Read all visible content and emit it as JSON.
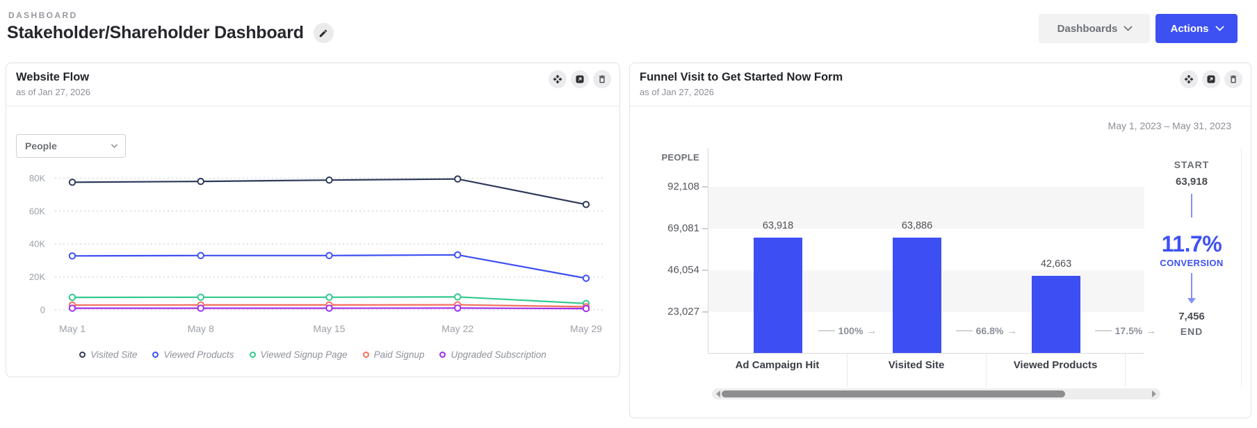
{
  "colors": {
    "accent": "#3d51f2",
    "bar_blue": "#3d4ff2"
  },
  "header": {
    "eyebrow": "DASHBOARD",
    "title": "Stakeholder/Shareholder Dashboard",
    "dashboards_button_label": "Dashboards",
    "actions_button_label": "Actions"
  },
  "website_flow_card": {
    "title": "Website Flow",
    "as_of": "as of Jan 27, 2026",
    "metric_dropdown_value": "People",
    "chart_data": {
      "type": "line",
      "x": [
        "May 1",
        "May 8",
        "May 15",
        "May 22",
        "May 29"
      ],
      "yticks": [
        {
          "label": "0",
          "value": 0
        },
        {
          "label": "20K",
          "value": 20000
        },
        {
          "label": "40K",
          "value": 40000
        },
        {
          "label": "60K",
          "value": 60000
        },
        {
          "label": "80K",
          "value": 80000
        }
      ],
      "ylim": [
        0,
        90000
      ],
      "grid": "dotted-horizontal",
      "legend_position": "bottom",
      "series": [
        {
          "name": "Visited Site",
          "color": "#2d3958",
          "values": [
            77500,
            78000,
            78800,
            79500,
            64000
          ]
        },
        {
          "name": "Viewed Products",
          "color": "#3d4ff2",
          "values": [
            32800,
            33000,
            33000,
            33400,
            19200
          ]
        },
        {
          "name": "Viewed Signup Page",
          "color": "#31c98e",
          "values": [
            7600,
            7700,
            7700,
            7900,
            3900
          ]
        },
        {
          "name": "Paid Signup",
          "color": "#f56e5e",
          "values": [
            2900,
            3000,
            3000,
            3100,
            1900
          ]
        },
        {
          "name": "Upgraded Subscription",
          "color": "#a02fe8",
          "values": [
            1000,
            1000,
            1000,
            1100,
            800
          ]
        }
      ]
    }
  },
  "funnel_card": {
    "title": "Funnel Visit to Get Started Now Form",
    "as_of": "as of Jan 27, 2026",
    "date_range": "May 1, 2023 – May 31, 2023",
    "chart_data": {
      "type": "bar",
      "ylabel": "PEOPLE",
      "categories": [
        "Ad Campaign Hit",
        "Visited Site",
        "Viewed Products"
      ],
      "values": [
        63918,
        63886,
        42663
      ],
      "value_labels": [
        "63,918",
        "63,886",
        "42,663"
      ],
      "step_percentages": [
        "100%",
        "66.8%",
        "17.5%"
      ],
      "yticks": [
        {
          "label": "23,027",
          "value": 23027
        },
        {
          "label": "46,054",
          "value": 46054
        },
        {
          "label": "69,081",
          "value": 69081
        },
        {
          "label": "92,108",
          "value": 92108
        }
      ],
      "ylim": [
        0,
        113500
      ],
      "bar_color": "#3d4ff2"
    },
    "summary": {
      "start_label": "START",
      "start_value": "63,918",
      "conversion_value": "11.7%",
      "conversion_label": "CONVERSION",
      "end_value": "7,456",
      "end_label": "END"
    }
  }
}
